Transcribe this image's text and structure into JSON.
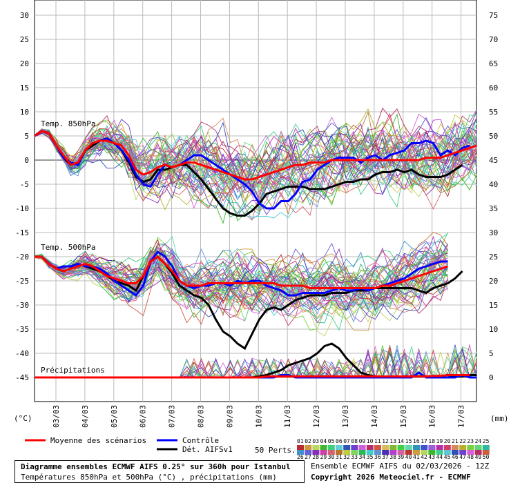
{
  "chart_data": {
    "type": "line",
    "title": "Diagramme ensembles ECMWF AIFS 0.25° sur 360h pour Istanbul",
    "subtitle": "Températures 850hPa et 500hPa (°C) , précipitations (mm)",
    "run_info": "Ensemble ECMWF AIFS du 02/03/2026 - 12Z",
    "copyright": "Copyright 2026 Meteociel.fr - ECMWF",
    "left_axis_label": "(°C)",
    "right_axis_label": "(mm)",
    "left_ticks": [
      30,
      25,
      20,
      15,
      10,
      5,
      0,
      -5,
      -10,
      -15,
      -20,
      -25,
      -30,
      -35,
      -40,
      -45
    ],
    "right_ticks": [
      75,
      70,
      65,
      60,
      55,
      50,
      45,
      40,
      35,
      30,
      25,
      20,
      15,
      10,
      5,
      0
    ],
    "ylim": [
      -45,
      30
    ],
    "x_labels": [
      "03/03",
      "04/03",
      "05/03",
      "06/03",
      "07/03",
      "08/03",
      "09/03",
      "10/03",
      "11/03",
      "12/03",
      "13/03",
      "14/03",
      "15/03",
      "16/03",
      "17/03"
    ],
    "panel_labels": {
      "t850": "Temp. 850hPa",
      "t500": "Temp. 500hPa",
      "precip": "Précipitations"
    },
    "x_step_hours": 6,
    "legend": {
      "mean": "Moyenne des scénarios",
      "control": "Contrôle",
      "det": "Dét. AIFSv1",
      "perts": "50 Perts."
    },
    "pert_labels": [
      "01",
      "02",
      "03",
      "04",
      "05",
      "06",
      "07",
      "08",
      "09",
      "10",
      "11",
      "12",
      "13",
      "14",
      "15",
      "16",
      "17",
      "18",
      "19",
      "20",
      "21",
      "22",
      "23",
      "24",
      "25",
      "26",
      "27",
      "28",
      "29",
      "30",
      "31",
      "32",
      "33",
      "34",
      "35",
      "36",
      "37",
      "38",
      "39",
      "40",
      "41",
      "42",
      "43",
      "44",
      "45",
      "46",
      "47",
      "48",
      "49",
      "50"
    ],
    "series": [
      {
        "name": "Moyenne des scénarios",
        "color": "#ff0000",
        "t850": [
          5,
          6,
          5.5,
          3,
          1,
          -1,
          -0.5,
          2,
          3.5,
          4,
          4,
          3.5,
          3,
          1,
          -2,
          -3,
          -2.5,
          -1.5,
          -1,
          -1.5,
          -1,
          -0.5,
          -0.5,
          -1,
          -1.5,
          -2,
          -2.5,
          -3,
          -3.5,
          -4,
          -4,
          -3.5,
          -3,
          -2.5,
          -2,
          -1.5,
          -1,
          -1,
          -0.5,
          -0.5,
          -0.5,
          0,
          0,
          0,
          0,
          0,
          0,
          0,
          0,
          0,
          0,
          0,
          0,
          0,
          0.5,
          0.5,
          0.5,
          1,
          1.5,
          2,
          2.5,
          3
        ],
        "t500": [
          -20,
          -20,
          -21.5,
          -22.5,
          -23,
          -22.5,
          -22,
          -21.5,
          -22,
          -23,
          -24,
          -24.5,
          -25,
          -25.5,
          -25.5,
          -24,
          -21,
          -20,
          -21.5,
          -23,
          -25,
          -26,
          -26,
          -26,
          -25.5,
          -25.5,
          -25.5,
          -25.5,
          -25.5,
          -25.5,
          -25.5,
          -25.5,
          -25.5,
          -25.5,
          -26,
          -26,
          -26,
          -26,
          -26.5,
          -26.5,
          -26.5,
          -26.5,
          -26.5,
          -26.5,
          -26.5,
          -26.5,
          -26.5,
          -26.5,
          -26,
          -26,
          -25.5,
          -25,
          -24.5,
          -24,
          -23.5,
          -23,
          -22.5,
          -22
        ],
        "precip": [
          0,
          0,
          0,
          0,
          0,
          0,
          0,
          0,
          0,
          0,
          0,
          0,
          0,
          0,
          0,
          0,
          0,
          0,
          0,
          0,
          0,
          0,
          0,
          0,
          0,
          0,
          0,
          0,
          0,
          0,
          0,
          0,
          0.2,
          0.2,
          0.2,
          0.2,
          0.2,
          0.2,
          0.2,
          0.2,
          0.2,
          0.2,
          0.2,
          0.2,
          0.2,
          0.2,
          0.2,
          0.2,
          0.2,
          0.2,
          0.2,
          0.2,
          0.2,
          0.2,
          0.2,
          0.3,
          0.3,
          0.5,
          0.5,
          0.5,
          0.5
        ]
      },
      {
        "name": "Contrôle",
        "color": "#0000ff",
        "t850": [
          5,
          6,
          5.5,
          3,
          0.5,
          -0.5,
          -1,
          2,
          3.5,
          4,
          4.5,
          3.5,
          2,
          0,
          -3,
          -5,
          -5.5,
          -3,
          -1,
          -1.5,
          -1,
          0,
          1,
          1,
          0,
          -1,
          -2,
          -3,
          -4,
          -5,
          -6.5,
          -9,
          -10,
          -10,
          -8.5,
          -8.5,
          -7,
          -4.5,
          -4,
          -2,
          -1,
          0,
          0.5,
          0.5,
          0.5,
          -0.5,
          0.5,
          1,
          0,
          1,
          1.5,
          2,
          3.5,
          3.5,
          4,
          3.5,
          1,
          2,
          1,
          2.5,
          3
        ],
        "t500": [
          -20,
          -20,
          -21.5,
          -22.5,
          -22,
          -22,
          -21.5,
          -22,
          -22,
          -22.5,
          -23.5,
          -25,
          -26,
          -27,
          -28,
          -26,
          -21,
          -19,
          -20,
          -22,
          -25,
          -26,
          -26.5,
          -26,
          -26,
          -25.5,
          -25.5,
          -26,
          -25,
          -25.5,
          -25,
          -25,
          -26,
          -26.5,
          -27,
          -28,
          -28,
          -27.5,
          -27.5,
          -27.5,
          -27.5,
          -27,
          -26.5,
          -27,
          -27,
          -26.5,
          -27,
          -26.5,
          -26,
          -25.5,
          -25,
          -24.5,
          -23.5,
          -22.5,
          -22,
          -21.5,
          -21,
          -21
        ],
        "precip": [
          0,
          0,
          0,
          0,
          0,
          0,
          0,
          0,
          0,
          0,
          0,
          0,
          0,
          0,
          0,
          0,
          0,
          0,
          0,
          0,
          0,
          0,
          0,
          0,
          0,
          0,
          0,
          0,
          0,
          0,
          0,
          0,
          0,
          0,
          0.5,
          0.5,
          0,
          0,
          0,
          0,
          0,
          0,
          0,
          0,
          0,
          0,
          0,
          0,
          0,
          0,
          0,
          0,
          0,
          1,
          0,
          0,
          0,
          0,
          0,
          0.5,
          0,
          0
        ]
      },
      {
        "name": "Dét. AIFSv1",
        "color": "#000000",
        "t850": [
          5,
          6,
          5.5,
          3,
          0.5,
          -1,
          -0.5,
          2,
          3,
          4,
          4,
          3.5,
          2,
          -0.5,
          -3.5,
          -4.5,
          -4,
          -2,
          -2,
          -1.5,
          -1,
          -1,
          -2.5,
          -4,
          -6,
          -8,
          -10,
          -11,
          -11.5,
          -11.5,
          -10.5,
          -9,
          -7,
          -6.5,
          -6,
          -5.5,
          -5.5,
          -5.5,
          -6,
          -6,
          -6,
          -5.5,
          -5,
          -4.5,
          -4.5,
          -4,
          -4,
          -3,
          -2.5,
          -2.5,
          -2,
          -2.5,
          -2,
          -3,
          -3.5,
          -3.5,
          -3.5,
          -3,
          -2,
          -1
        ],
        "t500": [
          -20,
          -20,
          -21.5,
          -22.5,
          -22,
          -22,
          -21.5,
          -22,
          -22.5,
          -23,
          -24,
          -25,
          -25.5,
          -26,
          -27,
          -24,
          -21,
          -20,
          -21.5,
          -23.5,
          -26,
          -27,
          -28,
          -28.5,
          -30,
          -33,
          -35.5,
          -36.5,
          -38,
          -39,
          -36,
          -33,
          -31,
          -30.5,
          -31,
          -30,
          -29,
          -28.5,
          -28,
          -28,
          -28,
          -27.5,
          -27.5,
          -27.5,
          -27,
          -27,
          -27,
          -26.5,
          -26.5,
          -26.5,
          -26.5,
          -26.5,
          -26.5,
          -27,
          -27.5,
          -26.5,
          -26,
          -25.5,
          -24.5,
          -23
        ],
        "precip": [
          0,
          0,
          0,
          0,
          0,
          0,
          0,
          0,
          0,
          0,
          0,
          0,
          0,
          0,
          0,
          0,
          0,
          0,
          0,
          0,
          0,
          0,
          0,
          0,
          0,
          0,
          0,
          0,
          0,
          0,
          0,
          0.2,
          0.5,
          1,
          1.5,
          2.5,
          3,
          3.5,
          4,
          5,
          6.5,
          7,
          6,
          4,
          2.5,
          1,
          0.5,
          0.2,
          0,
          0,
          0,
          0.2,
          0.2,
          0.2,
          0.2,
          0.2,
          0,
          0,
          0.2,
          0.2,
          0.5,
          0.5
        ]
      }
    ]
  },
  "colors": {
    "mean": "#ff0000",
    "control": "#0000ff",
    "det": "#000000",
    "grid": "#bbbbbb",
    "zero": "#777777"
  }
}
